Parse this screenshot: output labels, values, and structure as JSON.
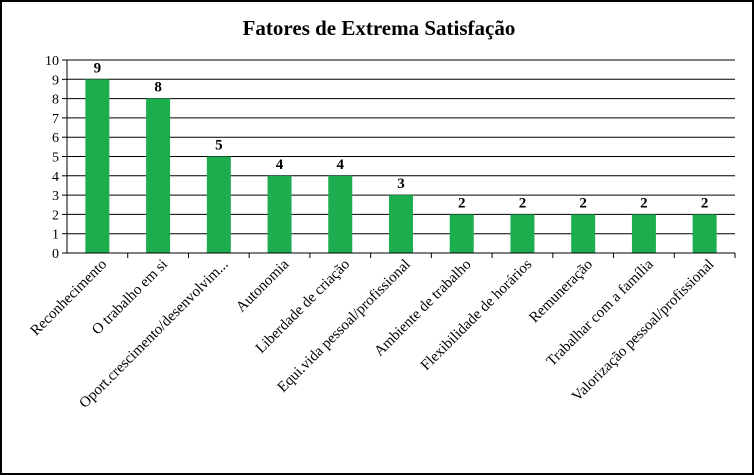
{
  "chart_data": {
    "type": "bar",
    "title": "Fatores de Extrema Satisfação",
    "categories": [
      "Reconhecimento",
      "O trabalho em si",
      "Oport.crescimento/desenvolvim...",
      "Autonomia",
      "Liberdade de criação",
      "Equi.vida pessoal/profissional",
      "Ambiente de trabalho",
      "Flexibilidade de horários",
      "Remuneração",
      "Trabalhar com a família",
      "Valorização pessoal/profissional"
    ],
    "values": [
      9,
      8,
      5,
      4,
      4,
      3,
      2,
      2,
      2,
      2,
      2
    ],
    "data_labels": [
      "9",
      "8",
      "5",
      "4",
      "4",
      "3",
      "2",
      "2",
      "2",
      "2",
      "2"
    ],
    "ylim": [
      0,
      10
    ],
    "yticks": [
      0,
      1,
      2,
      3,
      4,
      5,
      6,
      7,
      8,
      9,
      10
    ],
    "grid": true,
    "legend": "none",
    "bar_color": "#1cad4f",
    "grid_color": "#000000"
  }
}
